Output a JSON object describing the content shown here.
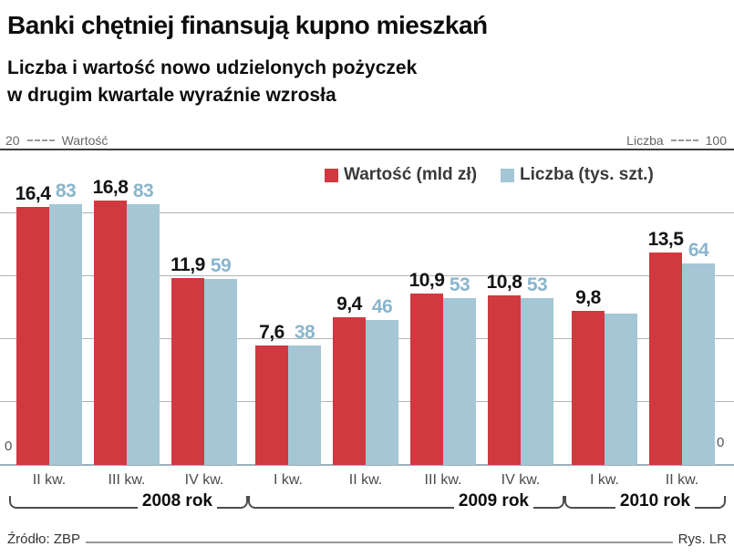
{
  "title": "Banki chętniej finansują kupno mieszkań",
  "subtitle_line1": "Liczba i wartość nowo udzielonych pożyczek",
  "subtitle_line2": "w drugim kwartale wyraźnie wzrosła",
  "axis_header": {
    "left_max": "20",
    "left_label": "Wartość",
    "right_label": "Liczba",
    "right_max": "100",
    "bottom_left_zero": "0",
    "bottom_right_zero": "0"
  },
  "legend": [
    {
      "label": "Wartość (mld zł)",
      "color": "#cf393f"
    },
    {
      "label": "Liczba (tys. szt.)",
      "color": "#a5c6d5"
    }
  ],
  "colors": {
    "bar_value": "#cf393f",
    "bar_count": "#a5c6d5",
    "count_label_text": "#8ab5cc",
    "value_label_text": "#141414",
    "gridline": "#b4b4b4"
  },
  "footer": {
    "source": "Źródło: ZBP",
    "credit": "Rys. LR"
  },
  "chart_data": {
    "type": "bar",
    "title": "Banki chętniej finansują kupno mieszkań",
    "subtitle": "Liczba i wartość nowo udzielonych pożyczek w drugim kwartale wyraźnie wzrosła",
    "categories": [
      "II kw.",
      "III kw.",
      "IV kw.",
      "I kw.",
      "II kw.",
      "III kw.",
      "IV kw.",
      "I kw.",
      "II kw."
    ],
    "year_groups": [
      {
        "label": "2008 rok",
        "from": 0,
        "to": 2
      },
      {
        "label": "2009 rok",
        "from": 3,
        "to": 6
      },
      {
        "label": "2010 rok",
        "from": 7,
        "to": 8
      }
    ],
    "series": [
      {
        "name": "Wartość (mld zł)",
        "axis": "left",
        "ylim": [
          0,
          20
        ],
        "values": [
          16.4,
          16.8,
          11.9,
          7.6,
          9.4,
          10.9,
          10.8,
          9.8,
          13.5
        ],
        "labels": [
          "16,4",
          "16,8",
          "11,9",
          "7,6",
          "9,4",
          "10,9",
          "10,8",
          "9,8",
          "13,5"
        ]
      },
      {
        "name": "Liczba (tys. szt.)",
        "axis": "right",
        "ylim": [
          0,
          100
        ],
        "values": [
          83,
          83,
          59,
          38,
          46,
          53,
          53,
          48,
          64
        ],
        "labels": [
          "83",
          "83",
          "59",
          "38",
          "46",
          "53",
          "53",
          "",
          "64"
        ]
      }
    ],
    "left_axis_label": "Wartość",
    "right_axis_label": "Liczba",
    "gridlines_left_axis": [
      4,
      8,
      12,
      16,
      20
    ],
    "grid": true,
    "legend_position": "top-center"
  }
}
